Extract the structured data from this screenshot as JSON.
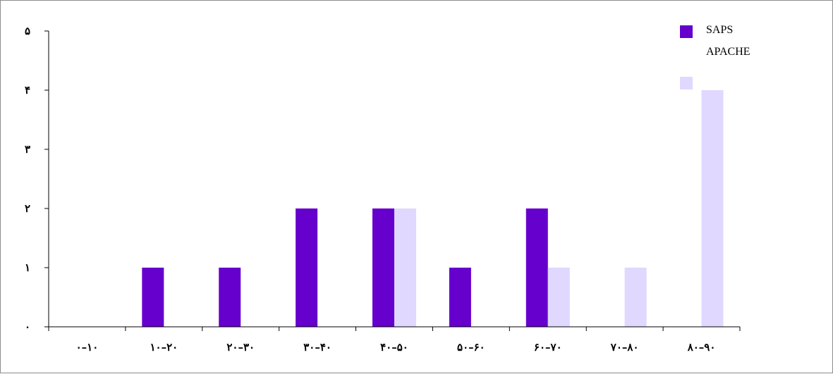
{
  "chart_data": {
    "type": "bar",
    "categories": [
      "۰–۱۰",
      "۱۰–۲۰",
      "۲۰–۳۰",
      "۳۰–۴۰",
      "۴۰–۵۰",
      "۵۰–۶۰",
      "۶۰–۷۰",
      "۷۰–۸۰",
      "۸۰–۹۰"
    ],
    "series": [
      {
        "name": "SAPS",
        "color": "#6600cc",
        "values": [
          0,
          1,
          1,
          2,
          2,
          1,
          2,
          0,
          0
        ]
      },
      {
        "name": "APACHE",
        "color": "#e0d8ff",
        "values": [
          0,
          0,
          0,
          0,
          2,
          0,
          1,
          1,
          4
        ]
      }
    ],
    "yticks": [
      {
        "value": 0,
        "label": "۰"
      },
      {
        "value": 1,
        "label": "۱"
      },
      {
        "value": 2,
        "label": "۲"
      },
      {
        "value": 3,
        "label": "۳"
      },
      {
        "value": 4,
        "label": "۴"
      },
      {
        "value": 5,
        "label": "۵"
      }
    ],
    "ylim": [
      0,
      5
    ],
    "title": "",
    "xlabel": "",
    "ylabel": "",
    "grid": false,
    "legend_position": "top-right"
  }
}
